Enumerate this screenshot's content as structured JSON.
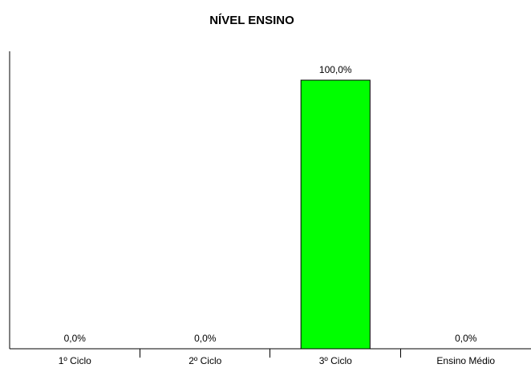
{
  "chart_data": {
    "type": "bar",
    "title": "NÍVEL ENSINO",
    "categories": [
      "1º Ciclo",
      "2º Ciclo",
      "3º Ciclo",
      "Ensino Médio"
    ],
    "values": [
      0.0,
      0.0,
      100.0,
      0.0
    ],
    "value_labels": [
      "0,0%",
      "0,0%",
      "100,0%",
      "0,0%"
    ],
    "ylim": [
      0,
      100
    ],
    "grid": false,
    "legend": "none",
    "bar_color": "#00ff00",
    "bar_edge_color": "#000000"
  }
}
